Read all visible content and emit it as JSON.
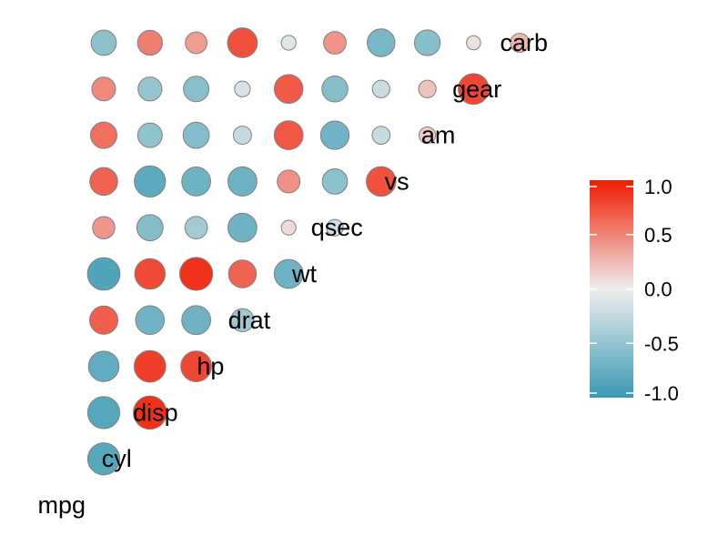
{
  "chart_data": {
    "type": "heatmap",
    "style": "lower-triangle correlation matrix with circles",
    "variables": [
      "mpg",
      "cyl",
      "disp",
      "hp",
      "drat",
      "wt",
      "qsec",
      "vs",
      "am",
      "gear",
      "carb"
    ],
    "matrix": [
      [
        1.0,
        -0.85,
        -0.85,
        -0.78,
        0.68,
        -0.87,
        0.42,
        0.66,
        0.6,
        0.48,
        -0.55
      ],
      [
        -0.85,
        1.0,
        0.9,
        0.83,
        -0.7,
        0.78,
        -0.59,
        -0.81,
        -0.52,
        -0.49,
        0.53
      ],
      [
        -0.85,
        0.9,
        1.0,
        0.79,
        -0.71,
        0.89,
        -0.43,
        -0.71,
        -0.59,
        -0.56,
        0.39
      ],
      [
        -0.78,
        0.83,
        0.79,
        1.0,
        -0.45,
        0.66,
        -0.71,
        -0.72,
        -0.24,
        -0.13,
        0.75
      ],
      [
        0.68,
        -0.7,
        -0.71,
        -0.45,
        1.0,
        -0.71,
        0.09,
        0.44,
        0.71,
        0.7,
        -0.09
      ],
      [
        -0.87,
        0.78,
        0.89,
        0.66,
        -0.71,
        1.0,
        -0.17,
        -0.55,
        -0.69,
        -0.58,
        0.43
      ],
      [
        0.42,
        -0.59,
        -0.43,
        -0.71,
        0.09,
        -0.17,
        1.0,
        0.74,
        -0.23,
        -0.21,
        -0.66
      ],
      [
        0.66,
        -0.81,
        -0.71,
        -0.72,
        0.44,
        -0.55,
        0.74,
        1.0,
        0.17,
        0.21,
        -0.57
      ],
      [
        0.6,
        -0.52,
        -0.59,
        -0.24,
        0.71,
        -0.69,
        -0.23,
        0.17,
        1.0,
        0.79,
        0.06
      ],
      [
        0.48,
        -0.49,
        -0.56,
        -0.13,
        0.7,
        -0.58,
        -0.21,
        0.21,
        0.79,
        1.0,
        0.27
      ],
      [
        -0.55,
        0.53,
        0.39,
        0.75,
        -0.09,
        0.43,
        -0.66,
        -0.57,
        0.06,
        0.27,
        1.0
      ]
    ],
    "legend": {
      "position": "right",
      "range": [
        -1.0,
        1.0
      ],
      "ticks": [
        1.0,
        0.5,
        0.0,
        -0.5,
        -1.0
      ],
      "tick_labels": [
        "1.0",
        "0.5",
        "0.0",
        "-0.5",
        "-1.0"
      ]
    },
    "colors": {
      "low": "#3A9AB2",
      "mid": "#EEEEEE",
      "high": "#F11B00",
      "circle_border": "#808080"
    },
    "grid": false,
    "title": "",
    "xlabel": "",
    "ylabel": ""
  }
}
